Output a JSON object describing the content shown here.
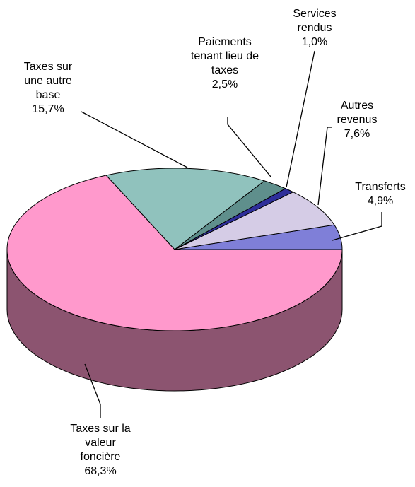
{
  "chart_data": {
    "type": "pie3d",
    "categories": [
      "Transferts",
      "Autres revenus",
      "Services rendus",
      "Paiements tenant lieu de taxes",
      "Taxes sur une autre base",
      "Taxes sur la valeur foncière"
    ],
    "values": [
      4.9,
      7.6,
      1.0,
      2.5,
      15.7,
      68.3
    ],
    "value_labels": [
      "4,9%",
      "7,6%",
      "1,0%",
      "2,5%",
      "15,7%",
      "68,3%"
    ],
    "colors": [
      "#7f7fd8",
      "#d5cce6",
      "#2e2e9a",
      "#5f8f8c",
      "#90c2bd",
      "#ff99cc"
    ]
  }
}
